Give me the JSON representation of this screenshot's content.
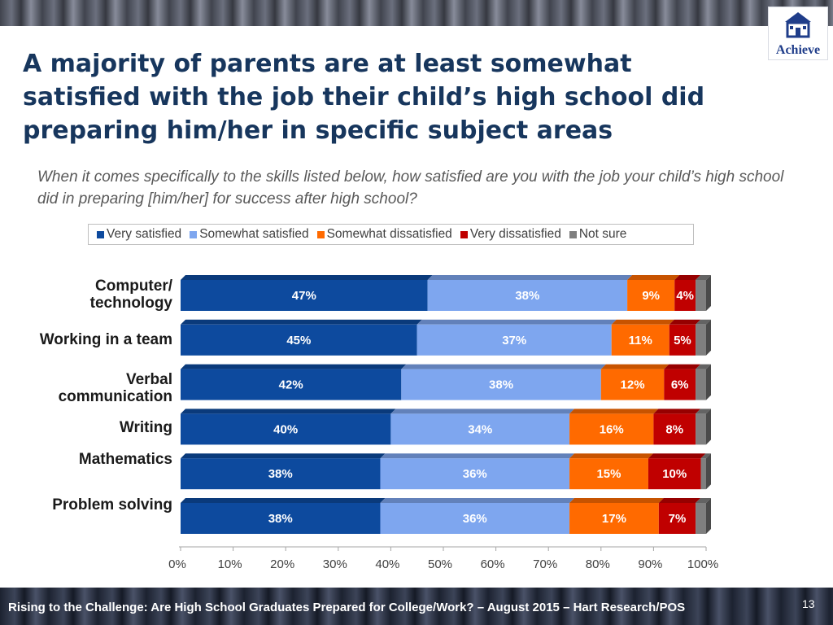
{
  "title": "A majority of parents are at least somewhat satisfied with the job their child’s high school did preparing him/her in specific subject areas",
  "subtitle": "When it comes specifically to the skills listed below, how satisfied are you with the job your child’s high school did in preparing [him/her] for success after high school?",
  "logo": {
    "text": "Achieve",
    "icon": "schoolhouse-icon"
  },
  "footer": {
    "source": "Rising to the Challenge:  Are High School Graduates Prepared for College/Work? – August 2015 – Hart Research/POS",
    "page_number": "13"
  },
  "colors": {
    "very_satisfied": "#0d4a9e",
    "somewhat_satisfied": "#7ea6ef",
    "somewhat_dissatisfied": "#ff6a00",
    "very_dissatisfied": "#c00000",
    "not_sure": "#7f7f7f",
    "title": "#17365d"
  },
  "chart_data": {
    "type": "bar",
    "orientation": "horizontal",
    "stacked": true,
    "categories": [
      "Computer/ technology",
      "Working in a team",
      "Verbal communication",
      "Writing",
      "Mathematics",
      "Problem solving"
    ],
    "series": [
      {
        "name": "Very satisfied",
        "values": [
          47,
          45,
          42,
          40,
          38,
          38
        ],
        "labels": [
          "47%",
          "45%",
          "42%",
          "40%",
          "38%",
          "38%"
        ],
        "color": "#0d4a9e"
      },
      {
        "name": "Somewhat satisfied",
        "values": [
          38,
          37,
          38,
          34,
          36,
          36
        ],
        "labels": [
          "38%",
          "37%",
          "38%",
          "34%",
          "36%",
          "36%"
        ],
        "color": "#7ea6ef"
      },
      {
        "name": "Somewhat dissatisfied",
        "values": [
          9,
          11,
          12,
          16,
          15,
          17
        ],
        "labels": [
          "9%",
          "11%",
          "12%",
          "16%",
          "15%",
          "17%"
        ],
        "color": "#ff6a00"
      },
      {
        "name": "Very dissatisfied",
        "values": [
          4,
          5,
          6,
          8,
          10,
          7
        ],
        "labels": [
          "4%",
          "5%",
          "6%",
          "8%",
          "10%",
          "7%"
        ],
        "color": "#c00000"
      },
      {
        "name": "Not sure",
        "values": [
          2,
          2,
          2,
          2,
          1,
          2
        ],
        "labels": [
          "",
          "",
          "",
          "",
          "",
          ""
        ],
        "color": "#7f7f7f"
      }
    ],
    "x_ticks": [
      "0%",
      "10%",
      "20%",
      "30%",
      "40%",
      "50%",
      "60%",
      "70%",
      "80%",
      "90%",
      "100%"
    ],
    "xlim": [
      0,
      100
    ],
    "grid": false,
    "legend_position": "top"
  }
}
